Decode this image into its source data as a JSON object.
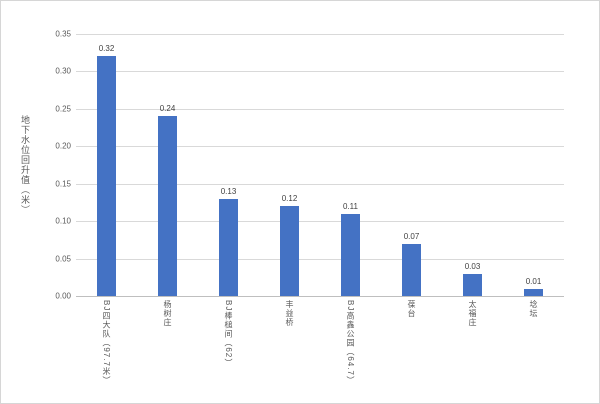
{
  "chart_data": {
    "type": "bar",
    "title": "",
    "xlabel": "",
    "ylabel": "地下水位回升值（米）",
    "categories": [
      "BJ四大队（97.7米）",
      "杨树庄",
      "BJ棒槌间（62）",
      "丰益桥",
      "BJ高鑫公园（64.7）",
      "葆台",
      "太福庄",
      "埝坛"
    ],
    "values": [
      0.32,
      0.24,
      0.13,
      0.12,
      0.11,
      0.07,
      0.03,
      0.01
    ],
    "data_labels": [
      "0.32",
      "0.24",
      "0.13",
      "0.12",
      "0.11",
      "0.07",
      "0.03",
      "0.01"
    ],
    "ylim": [
      0,
      0.35
    ],
    "ytick_step": 0.05,
    "yticks": [
      "0.00",
      "0.05",
      "0.10",
      "0.15",
      "0.20",
      "0.25",
      "0.30",
      "0.35"
    ],
    "grid": true,
    "legend_position": "none",
    "colors": {
      "bar": "#4472c4",
      "gridline": "#d9d9d9",
      "axis_line": "#bfbfbf",
      "tick_text": "#595959",
      "data_label_text": "#3f3f3f",
      "background": "#ffffff",
      "border": "#d6d6d6"
    }
  }
}
